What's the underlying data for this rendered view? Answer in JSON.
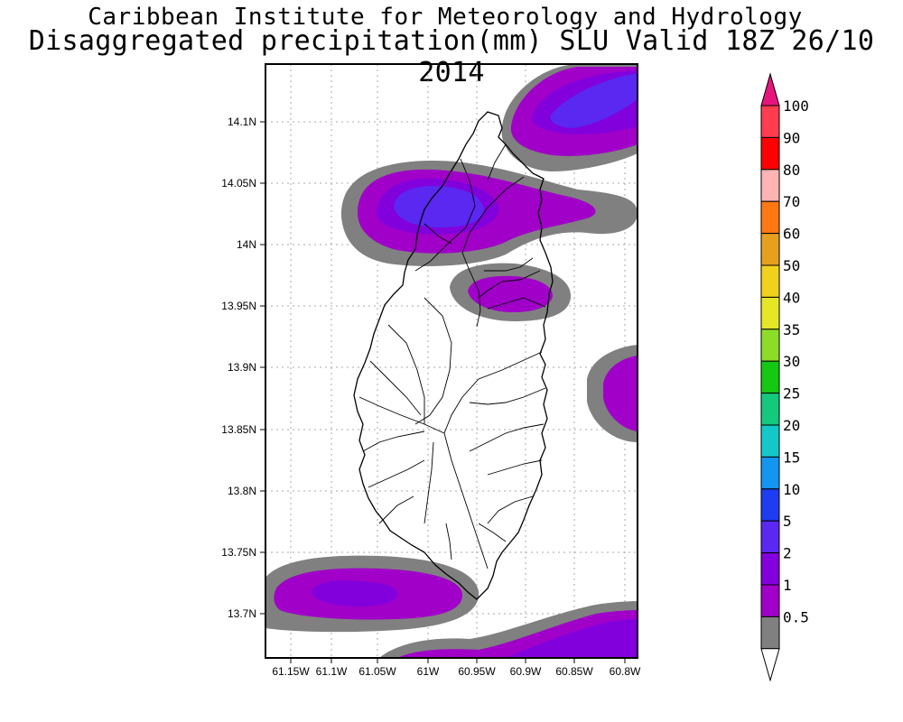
{
  "title": {
    "line1": "Caribbean Institute for Meteorology and Hydrology",
    "line2": "Disaggregated precipitation(mm) SLU Valid 18Z 26/10 2014"
  },
  "map": {
    "lon_ticks": [
      "61.15W",
      "61.1W",
      "61.05W",
      "61W",
      "60.95W",
      "60.9W",
      "60.85W",
      "60.8W"
    ],
    "lat_ticks": [
      "14.1N",
      "14.05N",
      "14N",
      "13.95N",
      "13.9N",
      "13.85N",
      "13.8N",
      "13.75N",
      "13.7N"
    ],
    "colors": {
      "level_0_5": "#808080",
      "level_1": "#a000c8",
      "level_2": "#8200dc",
      "level_5": "#5a28f0"
    }
  },
  "colorbar": {
    "labels": [
      "100",
      "90",
      "80",
      "70",
      "60",
      "50",
      "40",
      "35",
      "30",
      "25",
      "20",
      "15",
      "10",
      "5",
      "2",
      "1",
      "0.5"
    ],
    "colors": [
      "#ff3c50",
      "#ff0000",
      "#ffb4b4",
      "#ff7814",
      "#e6a01e",
      "#f0d21e",
      "#e6e628",
      "#8cdc28",
      "#14c814",
      "#14c87d",
      "#14c8c8",
      "#1496f0",
      "#1e3cf0",
      "#5a28f0",
      "#8200dc",
      "#a000c8",
      "#808080"
    ],
    "over_color": "#e6147d",
    "under_color": "#ffffff"
  }
}
